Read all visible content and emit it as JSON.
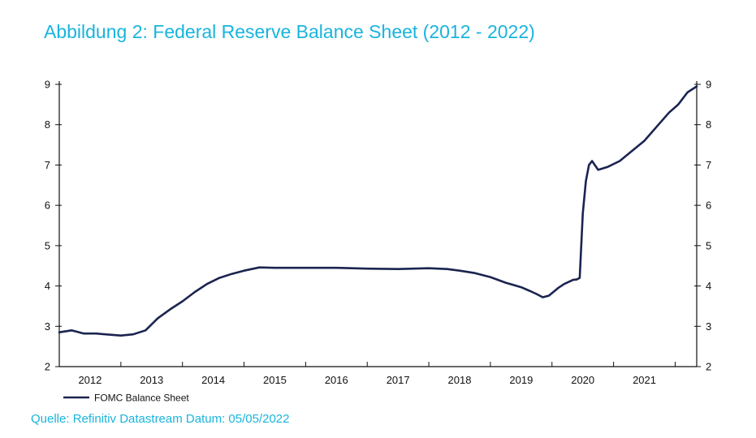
{
  "header": {
    "title": "Abbildung 2: Federal Reserve Balance Sheet (2012 - 2022)"
  },
  "footer": {
    "source": "Quelle: Refinitiv Datastream Datum: 05/05/2022"
  },
  "chart_data": {
    "type": "line",
    "title": "",
    "xlabel": "",
    "ylabel": "",
    "xlim": [
      2011.5,
      2021.85
    ],
    "ylim": [
      2,
      9
    ],
    "y_ticks": [
      2,
      3,
      4,
      5,
      6,
      7,
      8,
      9
    ],
    "x_ticks": [
      2012,
      2013,
      2014,
      2015,
      2016,
      2017,
      2018,
      2019,
      2020,
      2021
    ],
    "grid": false,
    "legend": "bottom-left",
    "colors": {
      "line": "#1b2450",
      "axis": "#111111"
    },
    "series": [
      {
        "name": "FOMC Balance Sheet",
        "x": [
          2011.5,
          2011.7,
          2011.9,
          2012.1,
          2012.25,
          2012.5,
          2012.7,
          2012.9,
          2013.1,
          2013.3,
          2013.5,
          2013.7,
          2013.9,
          2014.1,
          2014.3,
          2014.5,
          2014.75,
          2015.0,
          2015.5,
          2016.0,
          2016.5,
          2017.0,
          2017.5,
          2017.8,
          2018.0,
          2018.25,
          2018.5,
          2018.75,
          2019.0,
          2019.15,
          2019.25,
          2019.35,
          2019.45,
          2019.6,
          2019.7,
          2019.8,
          2019.84,
          2019.9,
          2019.95,
          2020.0,
          2020.05,
          2020.1,
          2020.15,
          2020.25,
          2020.4,
          2020.6,
          2020.8,
          2021.0,
          2021.2,
          2021.4,
          2021.55,
          2021.7,
          2021.85
        ],
        "values": [
          2.85,
          2.9,
          2.82,
          2.82,
          2.8,
          2.77,
          2.8,
          2.9,
          3.2,
          3.42,
          3.62,
          3.85,
          4.05,
          4.2,
          4.3,
          4.38,
          4.46,
          4.45,
          4.45,
          4.45,
          4.43,
          4.42,
          4.44,
          4.42,
          4.38,
          4.32,
          4.22,
          4.08,
          3.97,
          3.87,
          3.8,
          3.72,
          3.76,
          3.95,
          4.05,
          4.12,
          4.15,
          4.16,
          4.2,
          5.8,
          6.6,
          7.0,
          7.1,
          6.88,
          6.95,
          7.1,
          7.35,
          7.6,
          7.95,
          8.3,
          8.5,
          8.8,
          8.95
        ]
      }
    ]
  }
}
